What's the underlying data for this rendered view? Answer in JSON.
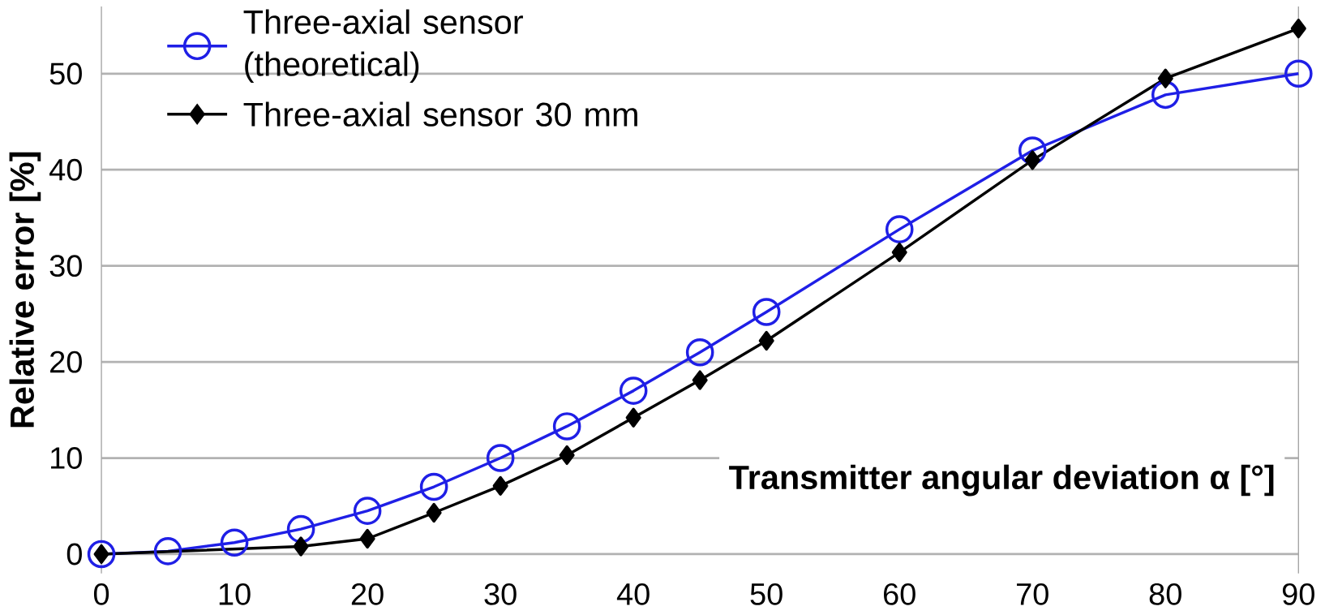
{
  "chart_data": {
    "type": "line",
    "xlabel": "Transmitter angular deviation α [°]",
    "ylabel": "Relative error [%]",
    "xlim": [
      0,
      90
    ],
    "ylim": [
      -2,
      57
    ],
    "xticks": [
      0,
      10,
      20,
      30,
      40,
      50,
      60,
      70,
      80,
      90
    ],
    "yticks": [
      0,
      10,
      20,
      30,
      40,
      50
    ],
    "grid": "y",
    "legend": "top left",
    "series": [
      {
        "name": "Three-axial sensor (theoretical)",
        "color": "#1f1fe6",
        "marker": "circle",
        "x": [
          0,
          5,
          10,
          15,
          20,
          25,
          30,
          35,
          40,
          45,
          50,
          60,
          70,
          80,
          90
        ],
        "values": [
          0,
          0.3,
          1.2,
          2.6,
          4.5,
          7.0,
          10.0,
          13.3,
          17.0,
          21.0,
          25.2,
          33.8,
          42.0,
          47.8,
          50.0
        ]
      },
      {
        "name": "Three-axial sensor 30 mm",
        "color": "#000000",
        "marker": "diamond",
        "x": [
          0,
          15,
          20,
          25,
          30,
          35,
          40,
          45,
          50,
          60,
          70,
          80,
          90
        ],
        "values": [
          0,
          0.8,
          1.6,
          4.3,
          7.1,
          10.3,
          14.2,
          18.1,
          22.2,
          31.4,
          41.0,
          49.5,
          54.7
        ]
      }
    ]
  }
}
